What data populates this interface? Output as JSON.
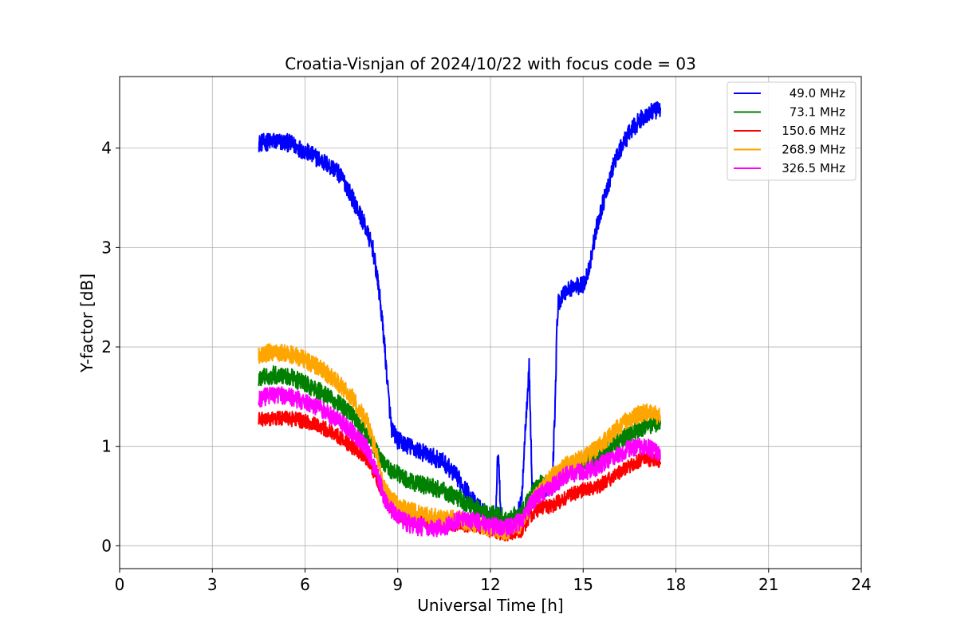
{
  "chart_data": {
    "type": "line",
    "title": "Croatia-Visnjan of 2024/10/22 with focus code = 03",
    "xlabel": "Universal Time [h]",
    "ylabel": "Y-factor [dB]",
    "xlim": [
      0,
      24
    ],
    "ylim": [
      -0.23,
      4.72
    ],
    "xticks": [
      0,
      3,
      6,
      9,
      12,
      15,
      18,
      21,
      24
    ],
    "yticks": [
      0,
      1,
      2,
      3,
      4
    ],
    "grid": true,
    "legend_position": "top-right",
    "series": [
      {
        "name": "49.0 MHz",
        "color": "#0000ff",
        "noise": 0.09,
        "x": [
          4.5,
          5.0,
          5.5,
          6.0,
          6.5,
          7.0,
          7.3,
          7.6,
          7.9,
          8.2,
          8.4,
          8.55,
          8.7,
          8.8,
          9.0,
          9.5,
          10.0,
          10.5,
          11.0,
          11.5,
          12.0,
          12.15,
          12.25,
          12.35,
          12.5,
          12.8,
          13.0,
          13.15,
          13.25,
          13.35,
          13.5,
          13.8,
          14.0,
          14.1,
          14.15,
          14.2,
          14.4,
          14.6,
          15.0,
          15.2,
          15.4,
          15.6,
          15.8,
          16.0,
          16.3,
          16.6,
          16.9,
          17.2,
          17.5
        ],
        "y": [
          4.05,
          4.07,
          4.05,
          3.97,
          3.88,
          3.78,
          3.65,
          3.45,
          3.25,
          2.98,
          2.55,
          2.1,
          1.5,
          1.18,
          1.06,
          0.98,
          0.91,
          0.84,
          0.66,
          0.42,
          0.28,
          0.18,
          1.0,
          0.18,
          0.18,
          0.28,
          0.42,
          1.3,
          1.82,
          0.55,
          0.55,
          0.58,
          0.6,
          1.5,
          2.2,
          2.45,
          2.55,
          2.6,
          2.62,
          2.8,
          3.15,
          3.4,
          3.6,
          3.85,
          4.05,
          4.2,
          4.3,
          4.36,
          4.38
        ]
      },
      {
        "name": "73.1 MHz",
        "color": "#008000",
        "noise": 0.09,
        "x": [
          4.5,
          5.0,
          5.5,
          6.0,
          6.5,
          7.0,
          7.5,
          8.0,
          8.3,
          8.6,
          9.0,
          9.5,
          10.0,
          10.5,
          11.0,
          11.5,
          12.0,
          12.5,
          13.0,
          13.3,
          13.6,
          14.0,
          14.5,
          15.0,
          15.5,
          16.0,
          16.5,
          17.0,
          17.5
        ],
        "y": [
          1.68,
          1.72,
          1.7,
          1.63,
          1.55,
          1.45,
          1.32,
          1.12,
          0.95,
          0.8,
          0.72,
          0.63,
          0.6,
          0.55,
          0.47,
          0.38,
          0.32,
          0.28,
          0.32,
          0.5,
          0.62,
          0.62,
          0.75,
          0.82,
          0.9,
          1.02,
          1.12,
          1.2,
          1.25
        ]
      },
      {
        "name": "150.6 MHz",
        "color": "#ff0000",
        "noise": 0.075,
        "x": [
          4.5,
          5.0,
          5.5,
          6.0,
          6.5,
          7.0,
          7.5,
          8.0,
          8.3,
          8.6,
          9.0,
          9.5,
          10.0,
          10.5,
          11.0,
          11.5,
          12.0,
          12.5,
          13.0,
          13.3,
          13.6,
          14.0,
          14.5,
          15.0,
          15.5,
          16.0,
          16.5,
          17.0,
          17.5
        ],
        "y": [
          1.27,
          1.28,
          1.28,
          1.25,
          1.2,
          1.12,
          1.0,
          0.88,
          0.7,
          0.45,
          0.3,
          0.25,
          0.24,
          0.22,
          0.22,
          0.2,
          0.16,
          0.12,
          0.15,
          0.3,
          0.38,
          0.4,
          0.5,
          0.56,
          0.6,
          0.7,
          0.8,
          0.88,
          0.85
        ]
      },
      {
        "name": "268.9 MHz",
        "color": "#ffa500",
        "noise": 0.09,
        "x": [
          4.5,
          5.0,
          5.5,
          6.0,
          6.5,
          7.0,
          7.5,
          8.0,
          8.3,
          8.6,
          9.0,
          9.5,
          10.0,
          10.5,
          11.0,
          11.5,
          12.0,
          12.5,
          13.0,
          13.3,
          13.6,
          14.0,
          14.5,
          15.0,
          15.5,
          16.0,
          16.5,
          17.0,
          17.5
        ],
        "y": [
          1.92,
          1.95,
          1.93,
          1.87,
          1.78,
          1.66,
          1.5,
          1.25,
          0.95,
          0.55,
          0.4,
          0.34,
          0.3,
          0.28,
          0.26,
          0.22,
          0.17,
          0.15,
          0.22,
          0.42,
          0.55,
          0.7,
          0.82,
          0.88,
          1.0,
          1.15,
          1.28,
          1.35,
          1.3
        ]
      },
      {
        "name": "326.5 MHz",
        "color": "#ff00ff",
        "noise": 0.09,
        "x": [
          4.5,
          5.0,
          5.5,
          6.0,
          6.5,
          7.0,
          7.5,
          8.0,
          8.3,
          8.6,
          9.0,
          9.5,
          10.0,
          10.5,
          11.0,
          11.5,
          12.0,
          12.5,
          13.0,
          13.3,
          13.6,
          14.0,
          14.5,
          15.0,
          15.5,
          16.0,
          16.5,
          17.0,
          17.5
        ],
        "y": [
          1.48,
          1.52,
          1.5,
          1.45,
          1.38,
          1.28,
          1.15,
          0.98,
          0.75,
          0.45,
          0.28,
          0.2,
          0.18,
          0.18,
          0.27,
          0.25,
          0.2,
          0.18,
          0.25,
          0.42,
          0.52,
          0.6,
          0.72,
          0.74,
          0.8,
          0.9,
          0.98,
          1.0,
          0.92
        ]
      }
    ]
  }
}
